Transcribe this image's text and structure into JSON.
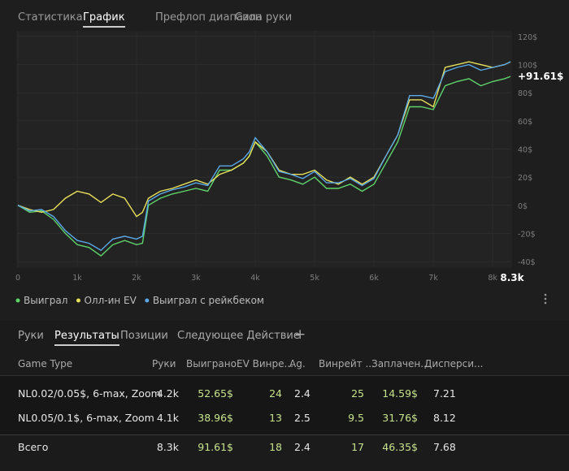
{
  "tabs": [
    {
      "label": "Статистика",
      "active": false
    },
    {
      "label": "График",
      "active": true
    },
    {
      "label": "Префлоп диапазон",
      "active": false
    },
    {
      "label": "Сила руки",
      "active": false
    }
  ],
  "chart_data": {
    "type": "line",
    "x": [
      0,
      200,
      400,
      600,
      800,
      1000,
      1200,
      1400,
      1600,
      1800,
      2000,
      2100,
      2200,
      2400,
      2600,
      2800,
      3000,
      3200,
      3400,
      3600,
      3800,
      3900,
      4000,
      4200,
      4400,
      4600,
      4800,
      5000,
      5200,
      5400,
      5600,
      5800,
      6000,
      6200,
      6400,
      6600,
      6800,
      7000,
      7200,
      7400,
      7600,
      7800,
      8000,
      8200,
      8300
    ],
    "series": [
      {
        "name": "Выиграл",
        "color": "#5fd36b",
        "values": [
          0,
          -5,
          -4,
          -10,
          -20,
          -28,
          -30,
          -36,
          -28,
          -25,
          -28,
          -27,
          0,
          5,
          8,
          10,
          12,
          10,
          25,
          25,
          30,
          35,
          45,
          35,
          20,
          18,
          15,
          20,
          12,
          12,
          15,
          10,
          15,
          30,
          45,
          70,
          70,
          68,
          85,
          88,
          90,
          85,
          88,
          90,
          91.61
        ]
      },
      {
        "name": "Олл-ин EV",
        "color": "#e8e05a",
        "values": [
          0,
          -3,
          -5,
          -3,
          5,
          10,
          8,
          2,
          8,
          5,
          -8,
          -5,
          5,
          10,
          12,
          15,
          18,
          15,
          22,
          25,
          30,
          35,
          45,
          38,
          25,
          22,
          22,
          25,
          18,
          15,
          20,
          15,
          20,
          35,
          50,
          75,
          75,
          70,
          98,
          100,
          102,
          100,
          98,
          100,
          102
        ]
      },
      {
        "name": "Выиграл с рейкбеком",
        "color": "#5aa8e8",
        "values": [
          0,
          -4,
          -3,
          -8,
          -18,
          -25,
          -27,
          -32,
          -24,
          -22,
          -24,
          -22,
          3,
          8,
          11,
          13,
          16,
          14,
          28,
          28,
          33,
          38,
          48,
          38,
          24,
          22,
          19,
          24,
          16,
          16,
          19,
          14,
          19,
          35,
          50,
          78,
          78,
          76,
          95,
          98,
          100,
          96,
          98,
          100,
          102
        ]
      }
    ],
    "xlim": [
      0,
      8300
    ],
    "xticks": [
      0,
      {
        "value": 1000,
        "label": "1k"
      },
      {
        "value": 2000,
        "label": "2k"
      },
      {
        "value": 3000,
        "label": "3k"
      },
      {
        "value": 4000,
        "label": "4k"
      },
      {
        "value": 5000,
        "label": "5k"
      },
      {
        "value": 6000,
        "label": "6k"
      },
      {
        "value": 7000,
        "label": "7k"
      },
      {
        "value": 8000,
        "label": "8k"
      },
      {
        "value": 8300,
        "label": "8.3k"
      }
    ],
    "ylim": [
      -44,
      124
    ],
    "yticks": [
      {
        "value": -40,
        "label": "-40$"
      },
      {
        "value": -20,
        "label": "-20$"
      },
      {
        "value": 0,
        "label": "0$"
      },
      {
        "value": 20,
        "label": "20$"
      },
      {
        "value": 40,
        "label": "40$"
      },
      {
        "value": 60,
        "label": "60$"
      },
      {
        "value": 80,
        "label": "80$"
      },
      {
        "value": 100,
        "label": "100$"
      },
      {
        "value": 120,
        "label": "120$"
      }
    ],
    "end_label": {
      "value": 91.61,
      "label": "+91.61$"
    },
    "grid": true
  },
  "bottom_tabs": [
    {
      "label": "Руки",
      "active": false
    },
    {
      "label": "Результаты",
      "active": true
    },
    {
      "label": "Позиции",
      "active": false
    },
    {
      "label": "Следующее Действие",
      "active": false
    },
    {
      "label": "+",
      "active": false
    }
  ],
  "table": {
    "columns": [
      "Game Type",
      "Руки",
      "Выиграно",
      "EV Винре...",
      "Ag.",
      "Винрейт ...",
      "Заплачен...",
      "Дисперси..."
    ],
    "rows": [
      [
        "NL0.02/0.05$, 6-max, Zoom",
        "4.2k",
        "52.65$",
        "24",
        "2.4",
        "25",
        "14.59$",
        "7.21"
      ],
      [
        "NL0.05/0.1$, 6-max, Zoom",
        "4.1k",
        "38.96$",
        "13",
        "2.5",
        "9.5",
        "31.76$",
        "8.12"
      ]
    ],
    "total": [
      "Всего",
      "8.3k",
      "91.61$",
      "18",
      "2.4",
      "17",
      "46.35$",
      "7.68"
    ]
  }
}
